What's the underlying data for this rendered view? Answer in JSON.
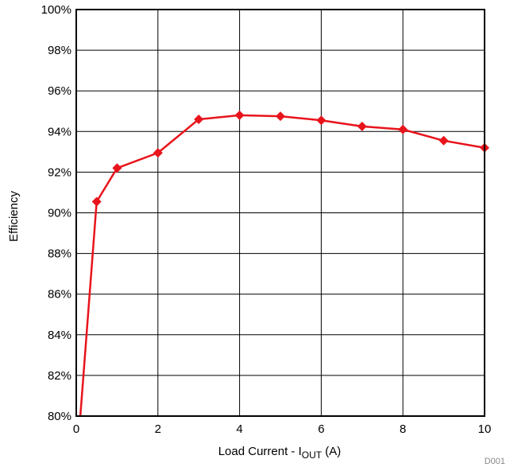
{
  "chart_data": {
    "type": "line",
    "xlabel": "Load Current - I",
    "xlabel_sub": "OUT",
    "xlabel_unit": " (A)",
    "ylabel": "Efficiency",
    "xlim": [
      0,
      10
    ],
    "ylim": [
      80,
      100
    ],
    "x_ticks": [
      "0",
      "2",
      "4",
      "6",
      "8",
      "10"
    ],
    "y_ticks": [
      "80%",
      "82%",
      "84%",
      "86%",
      "88%",
      "90%",
      "92%",
      "94%",
      "96%",
      "98%",
      "100%"
    ],
    "grid": true,
    "series": [
      {
        "color": "#e8141b",
        "marker": "diamond",
        "points": [
          {
            "x": 0.1,
            "y": 80.0,
            "marker": false
          },
          {
            "x": 0.5,
            "y": 90.55
          },
          {
            "x": 1,
            "y": 92.2
          },
          {
            "x": 2,
            "y": 92.95
          },
          {
            "x": 3,
            "y": 94.6
          },
          {
            "x": 4,
            "y": 94.8
          },
          {
            "x": 5,
            "y": 94.75
          },
          {
            "x": 6,
            "y": 94.55
          },
          {
            "x": 7,
            "y": 94.25
          },
          {
            "x": 8,
            "y": 94.1
          },
          {
            "x": 9,
            "y": 93.55
          },
          {
            "x": 10,
            "y": 93.2
          }
        ]
      }
    ],
    "annotation": "D001"
  }
}
